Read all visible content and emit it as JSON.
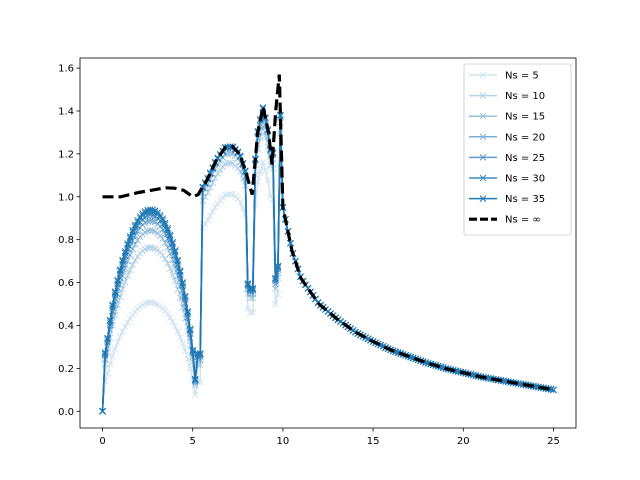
{
  "chart_data": {
    "type": "line",
    "title": "",
    "xlabel": "",
    "ylabel": "",
    "xlim": [
      -1.25,
      26.25
    ],
    "ylim": [
      -0.078,
      1.647
    ],
    "xticks": [
      0,
      5,
      10,
      15,
      20,
      25
    ],
    "yticks": [
      0.0,
      0.2,
      0.4,
      0.6,
      0.8,
      1.0,
      1.2,
      1.4,
      1.6
    ],
    "grid": false,
    "legend_position": "top-right",
    "marker": "x",
    "series_color": "#1f77b4",
    "reference_color": "#000000",
    "series": [
      {
        "name": "Ns = 5",
        "alpha": 0.2,
        "first_peak": 0.51
      },
      {
        "name": "Ns = 10",
        "alpha": 0.33,
        "first_peak": 0.8
      },
      {
        "name": "Ns = 15",
        "alpha": 0.46,
        "first_peak": 0.89
      },
      {
        "name": "Ns = 20",
        "alpha": 0.59,
        "first_peak": 0.94
      },
      {
        "name": "Ns = 25",
        "alpha": 0.72,
        "first_peak": 0.97
      },
      {
        "name": "Ns = 30",
        "alpha": 0.86,
        "first_peak": 0.99
      },
      {
        "name": "Ns = 35",
        "alpha": 1.0,
        "first_peak": 1.0
      }
    ],
    "reference": {
      "name": "Ns = ∞",
      "style": "dashed",
      "x": [
        0,
        1,
        2,
        3,
        3.5,
        4,
        4.5,
        5,
        5.3,
        5.8,
        6.3,
        6.8,
        7.2,
        7.6,
        8.0,
        8.3,
        8.6,
        8.9,
        9.2,
        9.4,
        9.6,
        9.8,
        10.0,
        10.5,
        11,
        12,
        13,
        14,
        15,
        16,
        17,
        18,
        19,
        20,
        21,
        22,
        23,
        24,
        25
      ],
      "y": [
        1.0,
        1.0,
        1.02,
        1.035,
        1.042,
        1.04,
        1.03,
        1.0,
        1.01,
        1.08,
        1.17,
        1.23,
        1.235,
        1.2,
        1.1,
        1.01,
        1.3,
        1.42,
        1.3,
        1.15,
        1.4,
        1.57,
        0.95,
        0.75,
        0.62,
        0.5,
        0.43,
        0.37,
        0.325,
        0.285,
        0.255,
        0.225,
        0.2,
        0.18,
        0.16,
        0.145,
        0.13,
        0.115,
        0.1
      ]
    }
  }
}
